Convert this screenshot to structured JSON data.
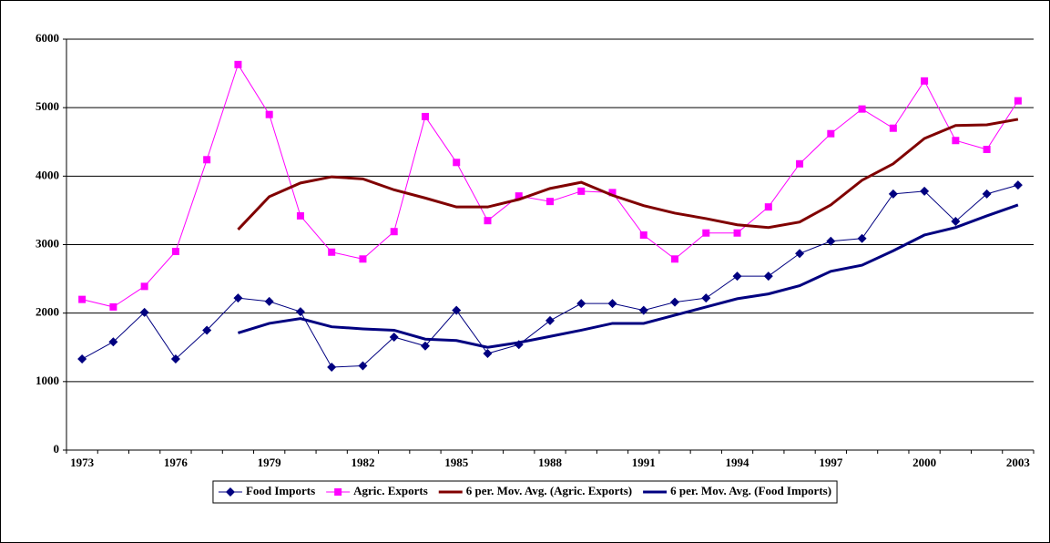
{
  "chart_data": {
    "type": "line",
    "categories": [
      "1973",
      null,
      null,
      "1976",
      null,
      null,
      "1979",
      null,
      null,
      "1982",
      null,
      null,
      "1985",
      null,
      null,
      "1988",
      null,
      null,
      "1991",
      null,
      null,
      "1994",
      null,
      null,
      "1997",
      null,
      null,
      "2000",
      null,
      null,
      "2003"
    ],
    "series": [
      {
        "name": "Food Imports",
        "color": "#000080",
        "marker": "diamond",
        "width": 1,
        "values": [
          1330,
          1580,
          2010,
          1330,
          1750,
          2220,
          2170,
          2020,
          1210,
          1230,
          1650,
          1520,
          2040,
          1410,
          1540,
          1890,
          2140,
          2140,
          2040,
          2160,
          2220,
          2540,
          2540,
          2870,
          3050,
          3090,
          3740,
          3780,
          3340,
          3740,
          3870
        ]
      },
      {
        "name": "Agric. Exports",
        "color": "#ff00ff",
        "marker": "square",
        "width": 1,
        "values": [
          2200,
          2090,
          2390,
          2900,
          4240,
          5630,
          4900,
          3420,
          2890,
          2790,
          3190,
          4870,
          4200,
          3350,
          3710,
          3630,
          3780,
          3760,
          3140,
          2790,
          3170,
          3170,
          3550,
          4180,
          4620,
          4980,
          4700,
          5390,
          4520,
          4390,
          5100
        ]
      },
      {
        "name": "6 per. Mov. Avg. (Agric. Exports)",
        "color": "#800000",
        "marker": "none",
        "width": 3,
        "values": [
          null,
          null,
          null,
          null,
          null,
          3220,
          3700,
          3900,
          3990,
          3960,
          3800,
          3680,
          3550,
          3550,
          3660,
          3820,
          3910,
          3720,
          3570,
          3460,
          3380,
          3290,
          3250,
          3330,
          3580,
          3940,
          4180,
          4550,
          4740,
          4750,
          4830
        ]
      },
      {
        "name": "6 per. Mov. Avg. (Food Imports)",
        "color": "#000080",
        "marker": "none",
        "width": 3,
        "values": [
          null,
          null,
          null,
          null,
          null,
          1710,
          1850,
          1920,
          1800,
          1770,
          1750,
          1620,
          1600,
          1500,
          1570,
          1660,
          1750,
          1850,
          1850,
          1970,
          2090,
          2210,
          2280,
          2400,
          2610,
          2700,
          2910,
          3140,
          3250,
          3420,
          3580
        ]
      }
    ],
    "ylim": [
      0,
      6000
    ],
    "yticks": [
      0,
      1000,
      2000,
      3000,
      4000,
      5000,
      6000
    ],
    "grid": true,
    "legend": "bottom"
  }
}
